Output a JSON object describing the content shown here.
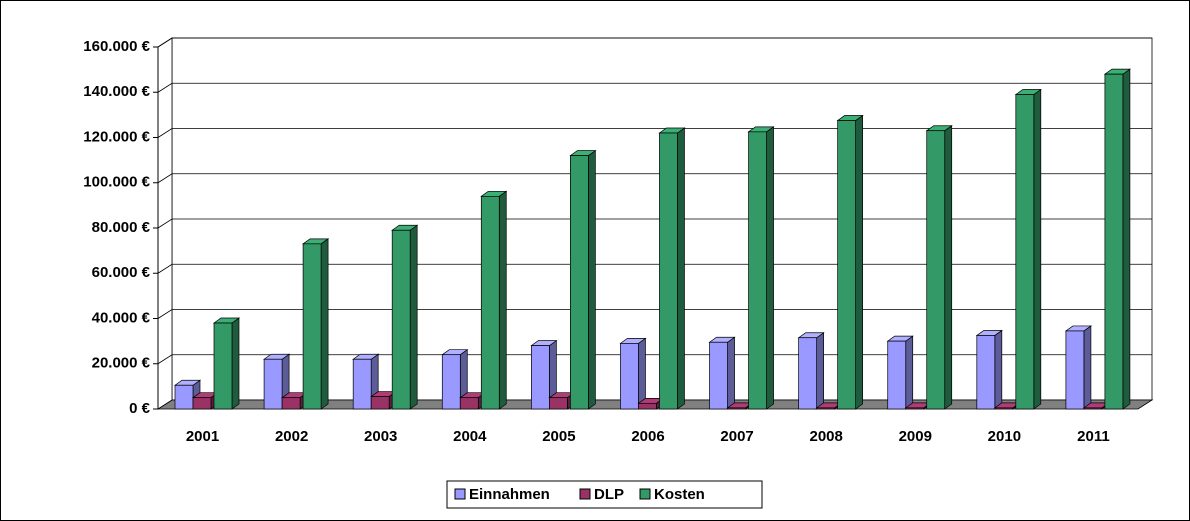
{
  "chart_data": {
    "type": "bar3d",
    "categories": [
      "2001",
      "2002",
      "2003",
      "2004",
      "2005",
      "2006",
      "2007",
      "2008",
      "2009",
      "2010",
      "2011"
    ],
    "series": [
      {
        "name": "Einnahmen",
        "color": "#9999ff",
        "values": [
          10500,
          22000,
          22000,
          24000,
          28000,
          29000,
          29500,
          31500,
          30000,
          32500,
          34500
        ]
      },
      {
        "name": "DLP",
        "color": "#993366",
        "values": [
          5000,
          5000,
          5500,
          5000,
          5000,
          2500,
          500,
          500,
          500,
          500,
          500
        ]
      },
      {
        "name": "Kosten",
        "color": "#339966",
        "values": [
          38000,
          73000,
          79000,
          94000,
          112000,
          122000,
          122500,
          127500,
          123000,
          139000,
          148000
        ]
      }
    ],
    "ylim": [
      0,
      160000
    ],
    "yticks": [
      {
        "value": 0,
        "label": "0 €"
      },
      {
        "value": 20000,
        "label": "20.000 €"
      },
      {
        "value": 40000,
        "label": "40.000 €"
      },
      {
        "value": 60000,
        "label": "60.000 €"
      },
      {
        "value": 80000,
        "label": "80.000 €"
      },
      {
        "value": 100000,
        "label": "100.000 €"
      },
      {
        "value": 120000,
        "label": "120.000 €"
      },
      {
        "value": 140000,
        "label": "140.000 €"
      },
      {
        "value": 160000,
        "label": "160.000 €"
      }
    ],
    "grid": true,
    "legend": "bottom"
  }
}
